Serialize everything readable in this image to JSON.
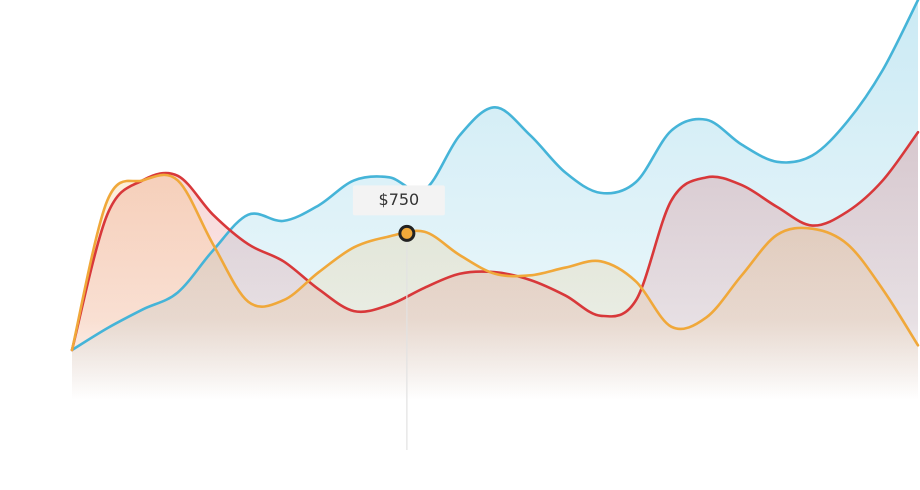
{
  "chart_data": {
    "type": "area",
    "x": [
      0,
      1,
      2,
      3,
      4,
      5,
      6,
      7,
      8,
      9,
      10,
      11,
      12,
      13,
      14,
      15,
      16,
      17,
      18,
      19,
      20,
      21,
      22,
      23,
      24
    ],
    "xlim": [
      0,
      24
    ],
    "ylim": [
      0,
      2250
    ],
    "series": [
      {
        "color": "#45b4d8",
        "values": [
          0,
          140,
          260,
          370,
          640,
          870,
          830,
          930,
          1090,
          1110,
          1030,
          1380,
          1560,
          1380,
          1140,
          1010,
          1080,
          1410,
          1480,
          1320,
          1210,
          1250,
          1470,
          1800,
          2250
        ]
      },
      {
        "color": "#d8383a",
        "values": [
          0,
          870,
          1090,
          1120,
          870,
          680,
          570,
          390,
          250,
          290,
          400,
          490,
          500,
          450,
          350,
          220,
          320,
          960,
          1110,
          1060,
          920,
          800,
          890,
          1090,
          1400
        ]
      },
      {
        "color": "#f0a83a",
        "values": [
          0,
          960,
          1090,
          1090,
          680,
          310,
          320,
          500,
          660,
          730,
          760,
          610,
          490,
          480,
          530,
          570,
          440,
          150,
          210,
          480,
          740,
          780,
          680,
          390,
          30
        ]
      }
    ],
    "annotation": {
      "x": 9.5,
      "value": 750,
      "label": "$750"
    }
  }
}
